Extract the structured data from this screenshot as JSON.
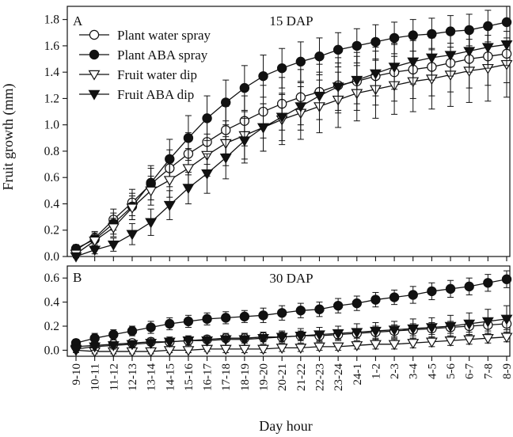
{
  "figure": {
    "x_label": "Day hour",
    "y_label": "Fruit growth (mm)",
    "categories": [
      "9-10",
      "10-11",
      "11-12",
      "12-13",
      "13-14",
      "14-15",
      "15-16",
      "16-17",
      "17-18",
      "18-19",
      "19-20",
      "20-21",
      "21-22",
      "22-23",
      "23-24",
      "24-1",
      "1-2",
      "2-3",
      "3-4",
      "4-5",
      "5-6",
      "6-7",
      "7-8",
      "8-9"
    ]
  },
  "chart_data": [
    {
      "type": "line",
      "panel_letter": "A",
      "title": "15 DAP",
      "xlabel": "Day hour",
      "ylabel": "Fruit growth (mm)",
      "ylim": [
        0,
        1.9
      ],
      "yticks": [
        0.0,
        0.2,
        0.4,
        0.6,
        0.8,
        1.0,
        1.2,
        1.4,
        1.6,
        1.8
      ],
      "legend_position": "top-left",
      "x": [
        "9-10",
        "10-11",
        "11-12",
        "12-13",
        "13-14",
        "14-15",
        "15-16",
        "16-17",
        "17-18",
        "18-19",
        "19-20",
        "20-21",
        "21-22",
        "22-23",
        "23-24",
        "24-1",
        "1-2",
        "2-3",
        "3-4",
        "4-5",
        "5-6",
        "6-7",
        "7-8",
        "8-9"
      ],
      "series": [
        {
          "name": "Plant water spray",
          "marker": "open-circle",
          "values": [
            0.05,
            0.14,
            0.28,
            0.41,
            0.55,
            0.67,
            0.78,
            0.87,
            0.96,
            1.03,
            1.1,
            1.16,
            1.21,
            1.25,
            1.3,
            1.33,
            1.37,
            1.4,
            1.42,
            1.44,
            1.47,
            1.5,
            1.52,
            1.54
          ],
          "error": [
            0.03,
            0.05,
            0.08,
            0.1,
            0.12,
            0.14,
            0.16,
            0.17,
            0.18,
            0.19,
            0.2,
            0.2,
            0.21,
            0.21,
            0.21,
            0.22,
            0.22,
            0.22,
            0.22,
            0.22,
            0.22,
            0.22,
            0.22,
            0.22
          ]
        },
        {
          "name": "Plant ABA spray",
          "marker": "filled-circle",
          "values": [
            0.06,
            0.13,
            0.25,
            0.38,
            0.56,
            0.74,
            0.9,
            1.05,
            1.17,
            1.28,
            1.37,
            1.43,
            1.48,
            1.52,
            1.57,
            1.6,
            1.63,
            1.66,
            1.68,
            1.69,
            1.71,
            1.72,
            1.75,
            1.78
          ],
          "error": [
            0.03,
            0.05,
            0.08,
            0.1,
            0.13,
            0.15,
            0.17,
            0.17,
            0.17,
            0.17,
            0.16,
            0.15,
            0.15,
            0.14,
            0.13,
            0.13,
            0.13,
            0.12,
            0.12,
            0.12,
            0.12,
            0.12,
            0.12,
            0.12
          ]
        },
        {
          "name": "Fruit water dip",
          "marker": "open-triangle-down",
          "values": [
            0.02,
            0.12,
            0.22,
            0.37,
            0.5,
            0.58,
            0.67,
            0.77,
            0.86,
            0.92,
            0.98,
            1.04,
            1.09,
            1.14,
            1.19,
            1.24,
            1.27,
            1.3,
            1.33,
            1.35,
            1.38,
            1.41,
            1.43,
            1.46
          ],
          "error": [
            0.02,
            0.04,
            0.07,
            0.09,
            0.11,
            0.13,
            0.15,
            0.16,
            0.17,
            0.18,
            0.18,
            0.19,
            0.2,
            0.2,
            0.21,
            0.21,
            0.22,
            0.22,
            0.23,
            0.23,
            0.24,
            0.24,
            0.25,
            0.25
          ]
        },
        {
          "name": "Fruit ABA dip",
          "marker": "filled-triangle-down",
          "values": [
            0.0,
            0.05,
            0.09,
            0.17,
            0.26,
            0.39,
            0.52,
            0.63,
            0.75,
            0.88,
            0.98,
            1.06,
            1.14,
            1.22,
            1.29,
            1.34,
            1.39,
            1.44,
            1.48,
            1.51,
            1.53,
            1.56,
            1.59,
            1.61
          ],
          "error": [
            0.01,
            0.03,
            0.05,
            0.08,
            0.1,
            0.11,
            0.12,
            0.15,
            0.16,
            0.17,
            0.18,
            0.18,
            0.18,
            0.18,
            0.18,
            0.18,
            0.17,
            0.17,
            0.17,
            0.17,
            0.16,
            0.16,
            0.16,
            0.16
          ]
        }
      ]
    },
    {
      "type": "line",
      "panel_letter": "B",
      "title": "30 DAP",
      "xlabel": "Day hour",
      "ylabel": "Fruit growth (mm)",
      "ylim": [
        -0.05,
        0.7
      ],
      "yticks": [
        0.0,
        0.2,
        0.4,
        0.6
      ],
      "x": [
        "9-10",
        "10-11",
        "11-12",
        "12-13",
        "13-14",
        "14-15",
        "15-16",
        "16-17",
        "17-18",
        "18-19",
        "19-20",
        "20-21",
        "21-22",
        "22-23",
        "23-24",
        "24-1",
        "1-2",
        "2-3",
        "3-4",
        "4-5",
        "5-6",
        "6-7",
        "7-8",
        "8-9"
      ],
      "series": [
        {
          "name": "Plant water spray",
          "marker": "open-circle",
          "values": [
            0.03,
            0.04,
            0.05,
            0.06,
            0.07,
            0.07,
            0.08,
            0.09,
            0.1,
            0.1,
            0.11,
            0.11,
            0.12,
            0.12,
            0.13,
            0.14,
            0.15,
            0.16,
            0.17,
            0.18,
            0.19,
            0.2,
            0.21,
            0.22
          ],
          "error": [
            0.02,
            0.02,
            0.03,
            0.03,
            0.03,
            0.03,
            0.03,
            0.03,
            0.03,
            0.04,
            0.04,
            0.04,
            0.04,
            0.04,
            0.04,
            0.04,
            0.05,
            0.05,
            0.05,
            0.05,
            0.05,
            0.05,
            0.05,
            0.05
          ]
        },
        {
          "name": "Plant ABA spray",
          "marker": "filled-circle",
          "values": [
            0.06,
            0.1,
            0.13,
            0.16,
            0.19,
            0.22,
            0.24,
            0.26,
            0.27,
            0.28,
            0.29,
            0.31,
            0.33,
            0.34,
            0.37,
            0.39,
            0.42,
            0.44,
            0.46,
            0.49,
            0.51,
            0.53,
            0.56,
            0.59
          ],
          "error": [
            0.03,
            0.04,
            0.04,
            0.04,
            0.05,
            0.05,
            0.05,
            0.05,
            0.05,
            0.05,
            0.06,
            0.06,
            0.06,
            0.06,
            0.06,
            0.06,
            0.06,
            0.06,
            0.07,
            0.07,
            0.07,
            0.07,
            0.07,
            0.07
          ]
        },
        {
          "name": "Fruit water dip",
          "marker": "open-triangle-down",
          "values": [
            0.0,
            -0.01,
            -0.01,
            -0.01,
            -0.01,
            0.0,
            0.0,
            0.01,
            0.01,
            0.01,
            0.01,
            0.02,
            0.02,
            0.03,
            0.03,
            0.04,
            0.05,
            0.05,
            0.06,
            0.07,
            0.08,
            0.09,
            0.1,
            0.11
          ],
          "error": [
            0.02,
            0.02,
            0.02,
            0.02,
            0.02,
            0.02,
            0.02,
            0.02,
            0.03,
            0.03,
            0.03,
            0.03,
            0.03,
            0.03,
            0.03,
            0.03,
            0.04,
            0.04,
            0.04,
            0.04,
            0.04,
            0.04,
            0.04,
            0.04
          ]
        },
        {
          "name": "Fruit ABA dip",
          "marker": "filled-triangle-down",
          "values": [
            0.01,
            0.03,
            0.04,
            0.05,
            0.06,
            0.07,
            0.08,
            0.08,
            0.09,
            0.09,
            0.1,
            0.11,
            0.12,
            0.13,
            0.14,
            0.15,
            0.16,
            0.17,
            0.18,
            0.19,
            0.2,
            0.22,
            0.24,
            0.26
          ],
          "error": [
            0.02,
            0.03,
            0.03,
            0.03,
            0.04,
            0.04,
            0.04,
            0.04,
            0.05,
            0.05,
            0.05,
            0.05,
            0.06,
            0.06,
            0.06,
            0.07,
            0.07,
            0.07,
            0.08,
            0.08,
            0.09,
            0.09,
            0.1,
            0.11
          ]
        }
      ]
    }
  ]
}
